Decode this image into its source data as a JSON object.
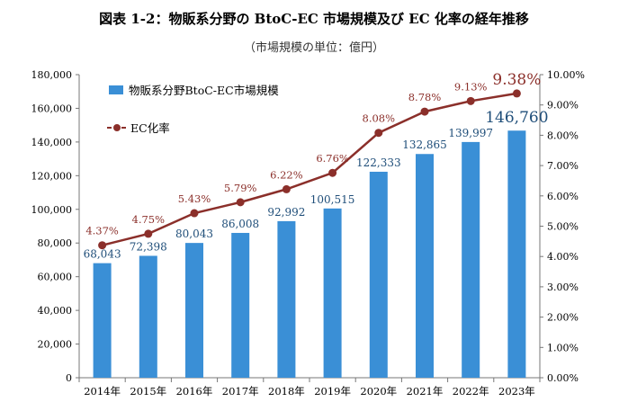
{
  "chart_data": {
    "type": "bar+line",
    "title": "図表 1-2：物販系分野の BtoC-EC 市場規模及び EC 化率の経年推移",
    "subtitle": "（市場規模の単位：億円）",
    "categories": [
      "2014年",
      "2015年",
      "2016年",
      "2017年",
      "2018年",
      "2019年",
      "2020年",
      "2021年",
      "2022年",
      "2023年"
    ],
    "series": [
      {
        "name": "物販系分野BtoC-EC市場規模",
        "type": "bar",
        "axis": "left",
        "color": "#3a8fd6",
        "values": [
          68043,
          72398,
          80043,
          86008,
          92992,
          100515,
          122333,
          132865,
          139997,
          146760
        ],
        "labels": [
          "68,043",
          "72,398",
          "80,043",
          "86,008",
          "92,992",
          "100,515",
          "122,333",
          "132,865",
          "139,997",
          "146,760"
        ]
      },
      {
        "name": "EC化率",
        "type": "line",
        "axis": "right",
        "color": "#8b2f2a",
        "values": [
          4.37,
          4.75,
          5.43,
          5.79,
          6.22,
          6.76,
          8.08,
          8.78,
          9.13,
          9.38
        ],
        "labels": [
          "4.37%",
          "4.75%",
          "5.43%",
          "5.79%",
          "6.22%",
          "6.76%",
          "8.08%",
          "8.78%",
          "9.13%",
          "9.38%"
        ]
      }
    ],
    "y_left": {
      "lim": [
        0,
        180000
      ],
      "ticks": [
        0,
        20000,
        40000,
        60000,
        80000,
        100000,
        120000,
        140000,
        160000,
        180000
      ],
      "tick_labels": [
        "0",
        "20,000",
        "40,000",
        "60,000",
        "80,000",
        "100,000",
        "120,000",
        "140,000",
        "160,000",
        "180,000"
      ]
    },
    "y_right": {
      "lim": [
        0,
        10
      ],
      "ticks": [
        0,
        1,
        2,
        3,
        4,
        5,
        6,
        7,
        8,
        9,
        10
      ],
      "tick_labels": [
        "0.00%",
        "1.00%",
        "2.00%",
        "3.00%",
        "4.00%",
        "5.00%",
        "6.00%",
        "7.00%",
        "8.00%",
        "9.00%",
        "10.00%"
      ]
    },
    "grid": false,
    "legend": "top-left",
    "bar_label_color": "#1f4e79",
    "line_label_color": "#8b2f2a"
  }
}
